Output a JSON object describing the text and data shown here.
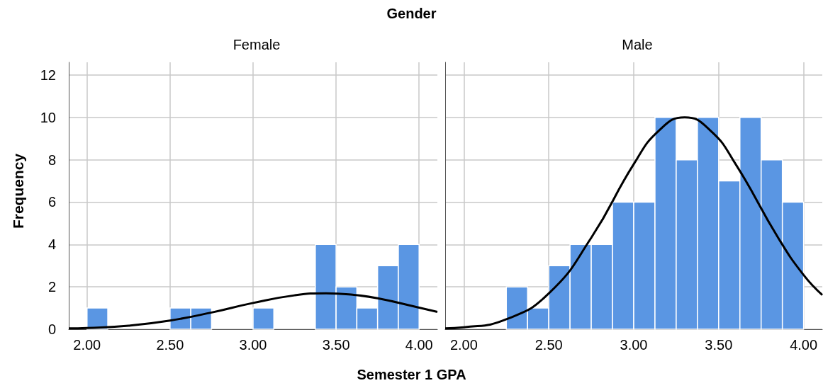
{
  "chart_data": [
    {
      "type": "histogram",
      "title": "Gender",
      "subtitle": "Female",
      "xlabel": "Semester 1 GPA",
      "ylabel": "Frequency",
      "xlim": [
        1.89,
        4.11
      ],
      "xticks": [
        {
          "value": 2,
          "label": "2.00"
        },
        {
          "value": 2.5,
          "label": "2.50"
        },
        {
          "value": 3,
          "label": "3.00"
        },
        {
          "value": 3.5,
          "label": "3.50"
        },
        {
          "value": 4,
          "label": "4.00"
        }
      ],
      "ylim": [
        0,
        12.6
      ],
      "yticks": [
        0,
        2,
        4,
        6,
        8,
        10,
        12
      ],
      "grid": true,
      "series": [
        {
          "color": "#5a96e3",
          "bins": [
            2,
            2.125,
            2.25,
            2.375,
            2.5,
            2.625,
            2.75,
            2.875,
            3,
            3.125,
            3.25,
            3.375,
            3.5,
            3.625,
            3.75,
            3.875,
            4
          ],
          "values": [
            1,
            0,
            0,
            0,
            1,
            1,
            0,
            0,
            1,
            0,
            0,
            4,
            2,
            1,
            3,
            4
          ]
        },
        {
          "type": "line",
          "color": "#000000",
          "x": [
            1.89,
            2,
            2.25,
            2.5,
            2.75,
            3,
            3.25,
            3.44,
            3.6,
            3.75,
            4,
            4.11
          ],
          "values": [
            0.04,
            0.06,
            0.17,
            0.41,
            0.79,
            1.24,
            1.6,
            1.7,
            1.63,
            1.46,
            1.02,
            0.82
          ]
        }
      ]
    },
    {
      "type": "histogram",
      "subtitle": "Male",
      "xlim": [
        1.89,
        4.11
      ],
      "xticks": [
        {
          "value": 2,
          "label": "2.00"
        },
        {
          "value": 2.5,
          "label": "2.50"
        },
        {
          "value": 3,
          "label": "3.00"
        },
        {
          "value": 3.5,
          "label": "3.50"
        },
        {
          "value": 4,
          "label": "4.00"
        }
      ],
      "ylim": [
        0,
        12.6
      ],
      "yticks": [
        0,
        2,
        4,
        6,
        8,
        10,
        12
      ],
      "grid": true,
      "tick_labels": "x",
      "series": [
        {
          "color": "#5a96e3",
          "bins": [
            2.25,
            2.375,
            2.5,
            2.625,
            2.75,
            2.875,
            3,
            3.125,
            3.25,
            3.375,
            3.5,
            3.625,
            3.75,
            3.875,
            4
          ],
          "values": [
            2,
            1,
            3,
            4,
            4,
            6,
            6,
            10,
            8,
            10,
            7,
            10,
            8,
            6
          ]
        },
        {
          "type": "line",
          "color": "#000000",
          "x": [
            1.89,
            2,
            2.25,
            2.5,
            2.75,
            3,
            3.15,
            3.3,
            3.45,
            3.6,
            3.85,
            4,
            4.11
          ],
          "values": [
            0.04,
            0.09,
            0.47,
            1.69,
            4.32,
            7.79,
            9.39,
            10,
            9.39,
            7.79,
            4.32,
            2.56,
            1.62
          ]
        }
      ]
    }
  ]
}
